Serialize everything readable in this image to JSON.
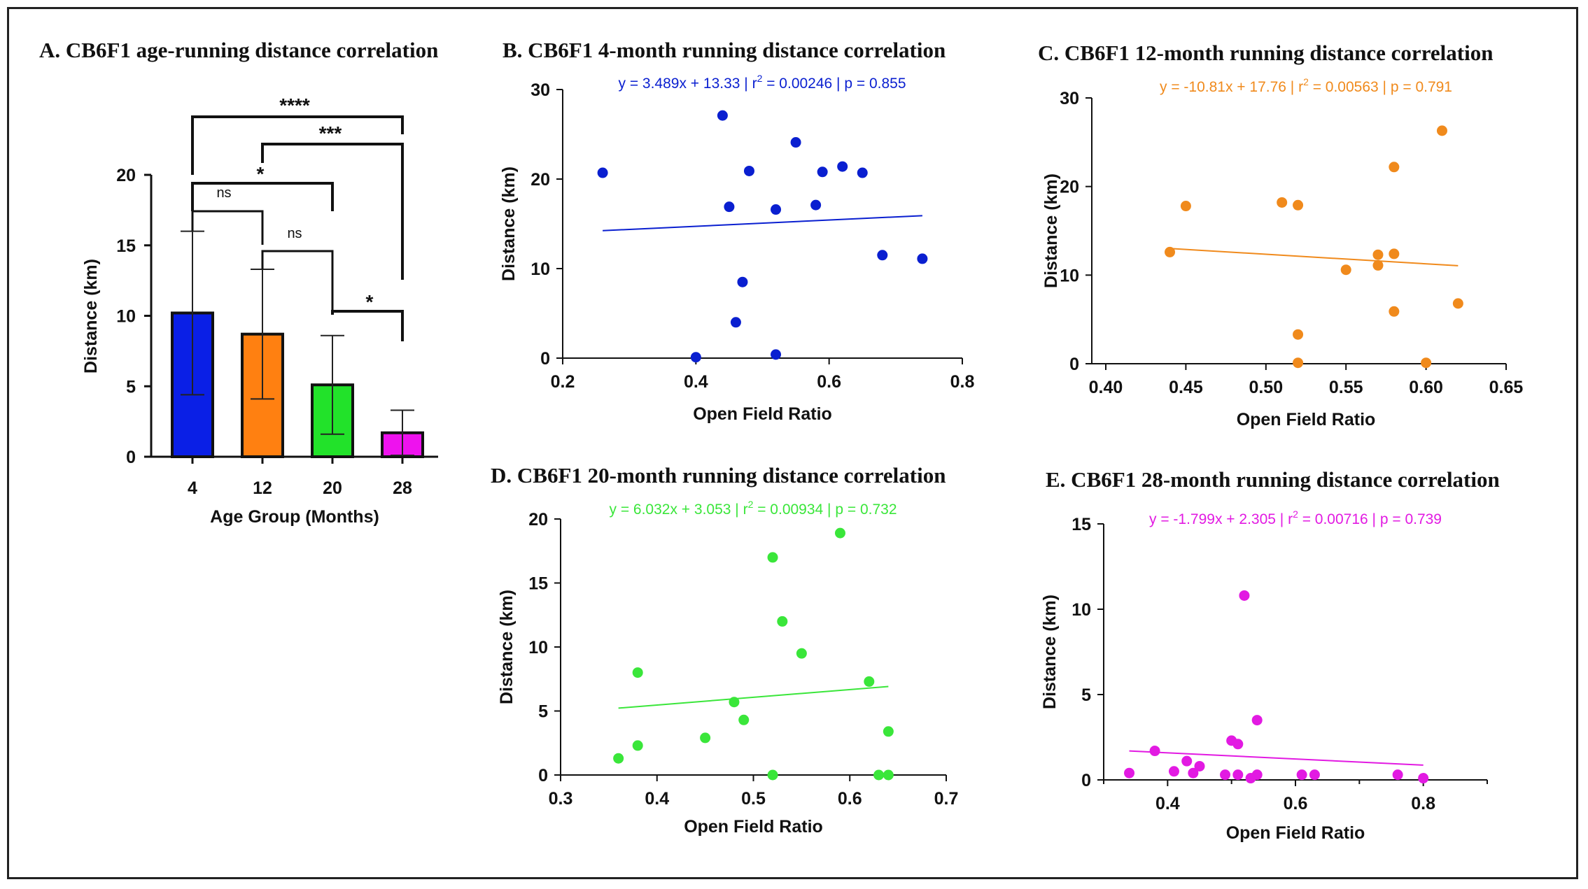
{
  "chart_data": [
    {
      "panel": "A",
      "type": "bar",
      "title": "A. CB6F1 age-running distance correlation",
      "xlabel": "Age Group (Months)",
      "ylabel": "Distance (km)",
      "ylim": [
        0,
        20
      ],
      "yticks": [
        0,
        5,
        10,
        15,
        20
      ],
      "categories": [
        "4",
        "12",
        "20",
        "28"
      ],
      "values": [
        10.2,
        8.7,
        5.1,
        1.7
      ],
      "errors": [
        5.8,
        4.6,
        3.5,
        1.6
      ],
      "colors": [
        "#0a1fe6",
        "#ff8011",
        "#22e22a",
        "#ee12ee"
      ],
      "comparisons": [
        {
          "from": "4",
          "to": "12",
          "label": "ns"
        },
        {
          "from": "12",
          "to": "20",
          "label": "ns"
        },
        {
          "from": "20",
          "to": "28",
          "label": "*"
        },
        {
          "from": "4",
          "to": "20",
          "label": "*"
        },
        {
          "from": "12",
          "to": "28",
          "label": "***"
        },
        {
          "from": "4",
          "to": "28",
          "label": "****"
        }
      ]
    },
    {
      "panel": "B",
      "type": "scatter",
      "title": "B. CB6F1 4-month running distance correlation",
      "equation_main": "y = 3.489x + 13.33 | r",
      "equation_sup": "2",
      "equation_tail": " = 0.00246 | p = 0.855",
      "color": "#0a1fd0",
      "xlabel": "Open Field Ratio",
      "ylabel": "Distance (km)",
      "xlim": [
        0.2,
        0.8
      ],
      "ylim": [
        0,
        30
      ],
      "xticks": [
        "0.2",
        "0.4",
        "0.6",
        "0.8"
      ],
      "yticks": [
        "0",
        "10",
        "20",
        "30"
      ],
      "slope": 3.489,
      "intercept": 13.33,
      "fit_range": [
        0.26,
        0.74
      ],
      "points": [
        [
          0.26,
          20.7
        ],
        [
          0.4,
          0.1
        ],
        [
          0.44,
          27.1
        ],
        [
          0.45,
          16.9
        ],
        [
          0.46,
          4.0
        ],
        [
          0.47,
          8.5
        ],
        [
          0.48,
          20.9
        ],
        [
          0.52,
          16.6
        ],
        [
          0.52,
          0.4
        ],
        [
          0.55,
          24.1
        ],
        [
          0.58,
          17.1
        ],
        [
          0.59,
          20.8
        ],
        [
          0.62,
          21.4
        ],
        [
          0.65,
          20.7
        ],
        [
          0.68,
          11.5
        ],
        [
          0.74,
          11.1
        ]
      ]
    },
    {
      "panel": "C",
      "type": "scatter",
      "title": "C. CB6F1 12-month running distance correlation",
      "equation_main": "y = -10.81x + 17.76 | r",
      "equation_sup": "2",
      "equation_tail": " = 0.00563 | p = 0.791",
      "color": "#f08a1c",
      "xlabel": "Open Field Ratio",
      "ylabel": "Distance (km)",
      "xlim": [
        0.4,
        0.65
      ],
      "ylim": [
        0,
        30
      ],
      "xticks": [
        "0.40",
        "0.45",
        "0.50",
        "0.55",
        "0.60",
        "0.65"
      ],
      "yticks": [
        "0",
        "10",
        "20",
        "30"
      ],
      "slope": -10.81,
      "intercept": 17.76,
      "fit_range": [
        0.44,
        0.62
      ],
      "points": [
        [
          0.44,
          12.6
        ],
        [
          0.45,
          17.8
        ],
        [
          0.51,
          18.2
        ],
        [
          0.52,
          17.9
        ],
        [
          0.52,
          3.3
        ],
        [
          0.52,
          0.1
        ],
        [
          0.55,
          10.6
        ],
        [
          0.57,
          12.3
        ],
        [
          0.57,
          11.1
        ],
        [
          0.58,
          22.2
        ],
        [
          0.58,
          12.4
        ],
        [
          0.58,
          5.9
        ],
        [
          0.6,
          0.1
        ],
        [
          0.61,
          26.3
        ],
        [
          0.62,
          6.8
        ]
      ]
    },
    {
      "panel": "D",
      "type": "scatter",
      "title": "D. CB6F1 20-month running distance correlation",
      "equation_main": "y = 6.032x + 3.053 | r",
      "equation_sup": "2",
      "equation_tail": " = 0.00934 | p = 0.732",
      "color": "#3ae63a",
      "xlabel": "Open Field Ratio",
      "ylabel": "Distance (km)",
      "xlim": [
        0.3,
        0.7
      ],
      "ylim": [
        0,
        20
      ],
      "xticks": [
        "0.3",
        "0.4",
        "0.5",
        "0.6",
        "0.7"
      ],
      "yticks": [
        "0",
        "5",
        "10",
        "15",
        "20"
      ],
      "slope": 6.032,
      "intercept": 3.053,
      "fit_range": [
        0.36,
        0.64
      ],
      "points": [
        [
          0.36,
          1.3
        ],
        [
          0.38,
          8.0
        ],
        [
          0.38,
          2.3
        ],
        [
          0.45,
          2.9
        ],
        [
          0.48,
          5.7
        ],
        [
          0.49,
          4.3
        ],
        [
          0.52,
          17.0
        ],
        [
          0.52,
          0.0
        ],
        [
          0.53,
          12.0
        ],
        [
          0.55,
          9.5
        ],
        [
          0.59,
          18.9
        ],
        [
          0.62,
          7.3
        ],
        [
          0.63,
          0.0
        ],
        [
          0.64,
          3.4
        ],
        [
          0.64,
          0.0
        ]
      ]
    },
    {
      "panel": "E",
      "type": "scatter",
      "title": "E. CB6F1 28-month running distance correlation",
      "equation_main": "y = -1.799x + 2.305 | r",
      "equation_sup": "2",
      "equation_tail": " = 0.00716 | p = 0.739",
      "color": "#e21ae2",
      "xlabel": "Open Field Ratio",
      "ylabel": "Distance (km)",
      "xlim": [
        0.3,
        0.9
      ],
      "ylim": [
        0,
        15
      ],
      "xticks": [
        "0.4",
        "0.6",
        "0.8"
      ],
      "yticks": [
        "0",
        "5",
        "10",
        "15"
      ],
      "slope": -1.799,
      "intercept": 2.305,
      "fit_range": [
        0.34,
        0.8
      ],
      "points": [
        [
          0.34,
          0.4
        ],
        [
          0.38,
          1.7
        ],
        [
          0.41,
          0.5
        ],
        [
          0.43,
          1.1
        ],
        [
          0.44,
          0.4
        ],
        [
          0.45,
          0.8
        ],
        [
          0.49,
          0.3
        ],
        [
          0.5,
          2.3
        ],
        [
          0.51,
          0.3
        ],
        [
          0.51,
          2.1
        ],
        [
          0.52,
          10.8
        ],
        [
          0.53,
          0.1
        ],
        [
          0.54,
          3.5
        ],
        [
          0.54,
          0.3
        ],
        [
          0.61,
          0.3
        ],
        [
          0.63,
          0.3
        ],
        [
          0.76,
          0.3
        ],
        [
          0.8,
          0.1
        ]
      ]
    }
  ]
}
